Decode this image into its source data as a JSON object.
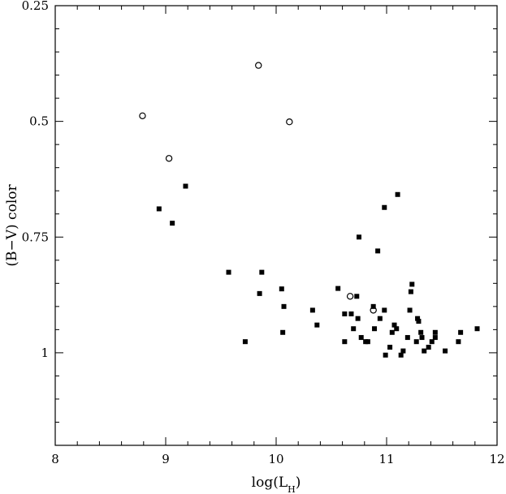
{
  "chart_data": {
    "type": "scatter",
    "title": "",
    "xlabel_main": "log(L",
    "xlabel_sub": "H",
    "xlabel_close": ")",
    "ylabel": "(B−V)  color",
    "xlim": [
      8,
      12
    ],
    "ylim": [
      0.25,
      1.2
    ],
    "y_inverted": true,
    "grid": false,
    "x_ticks": [
      8,
      9,
      10,
      11,
      12
    ],
    "x_tick_labels": [
      "8",
      "9",
      "10",
      "11",
      "12"
    ],
    "y_ticks": [
      0.25,
      0.5,
      0.75,
      1
    ],
    "y_tick_labels": [
      "0.25",
      "0.5",
      "0.75",
      "1"
    ],
    "series": [
      {
        "marker": "open-circle",
        "color": "#000000",
        "points": [
          [
            8.79,
            0.488
          ],
          [
            9.03,
            0.58
          ],
          [
            9.84,
            0.379
          ],
          [
            10.12,
            0.501
          ],
          [
            10.67,
            0.878
          ],
          [
            10.88,
            0.908
          ]
        ]
      },
      {
        "marker": "filled-square",
        "color": "#000000",
        "points": [
          [
            8.94,
            0.689
          ],
          [
            9.06,
            0.72
          ],
          [
            9.18,
            0.64
          ],
          [
            9.57,
            0.826
          ],
          [
            9.72,
            0.976
          ],
          [
            9.85,
            0.872
          ],
          [
            9.87,
            0.826
          ],
          [
            10.05,
            0.862
          ],
          [
            10.06,
            0.956
          ],
          [
            10.07,
            0.9
          ],
          [
            10.33,
            0.908
          ],
          [
            10.37,
            0.94
          ],
          [
            10.56,
            0.861
          ],
          [
            10.62,
            0.916
          ],
          [
            10.62,
            0.976
          ],
          [
            10.68,
            0.916
          ],
          [
            10.7,
            0.948
          ],
          [
            10.73,
            0.878
          ],
          [
            10.74,
            0.926
          ],
          [
            10.75,
            0.75
          ],
          [
            10.77,
            0.967
          ],
          [
            10.81,
            0.976
          ],
          [
            10.83,
            0.976
          ],
          [
            10.88,
            0.9
          ],
          [
            10.89,
            0.948
          ],
          [
            10.92,
            0.78
          ],
          [
            10.94,
            0.926
          ],
          [
            10.98,
            0.686
          ],
          [
            10.98,
            0.908
          ],
          [
            10.99,
            1.005
          ],
          [
            11.03,
            0.988
          ],
          [
            11.05,
            0.956
          ],
          [
            11.07,
            0.94
          ],
          [
            11.09,
            0.948
          ],
          [
            11.1,
            0.658
          ],
          [
            11.13,
            1.005
          ],
          [
            11.15,
            0.996
          ],
          [
            11.19,
            0.967
          ],
          [
            11.21,
            0.908
          ],
          [
            11.22,
            0.868
          ],
          [
            11.23,
            0.852
          ],
          [
            11.27,
            0.976
          ],
          [
            11.28,
            0.926
          ],
          [
            11.29,
            0.932
          ],
          [
            11.31,
            0.956
          ],
          [
            11.32,
            0.967
          ],
          [
            11.34,
            0.996
          ],
          [
            11.38,
            0.988
          ],
          [
            11.41,
            0.976
          ],
          [
            11.44,
            0.967
          ],
          [
            11.44,
            0.956
          ],
          [
            11.53,
            0.996
          ],
          [
            11.65,
            0.976
          ],
          [
            11.67,
            0.956
          ],
          [
            11.82,
            0.948
          ]
        ]
      }
    ]
  }
}
